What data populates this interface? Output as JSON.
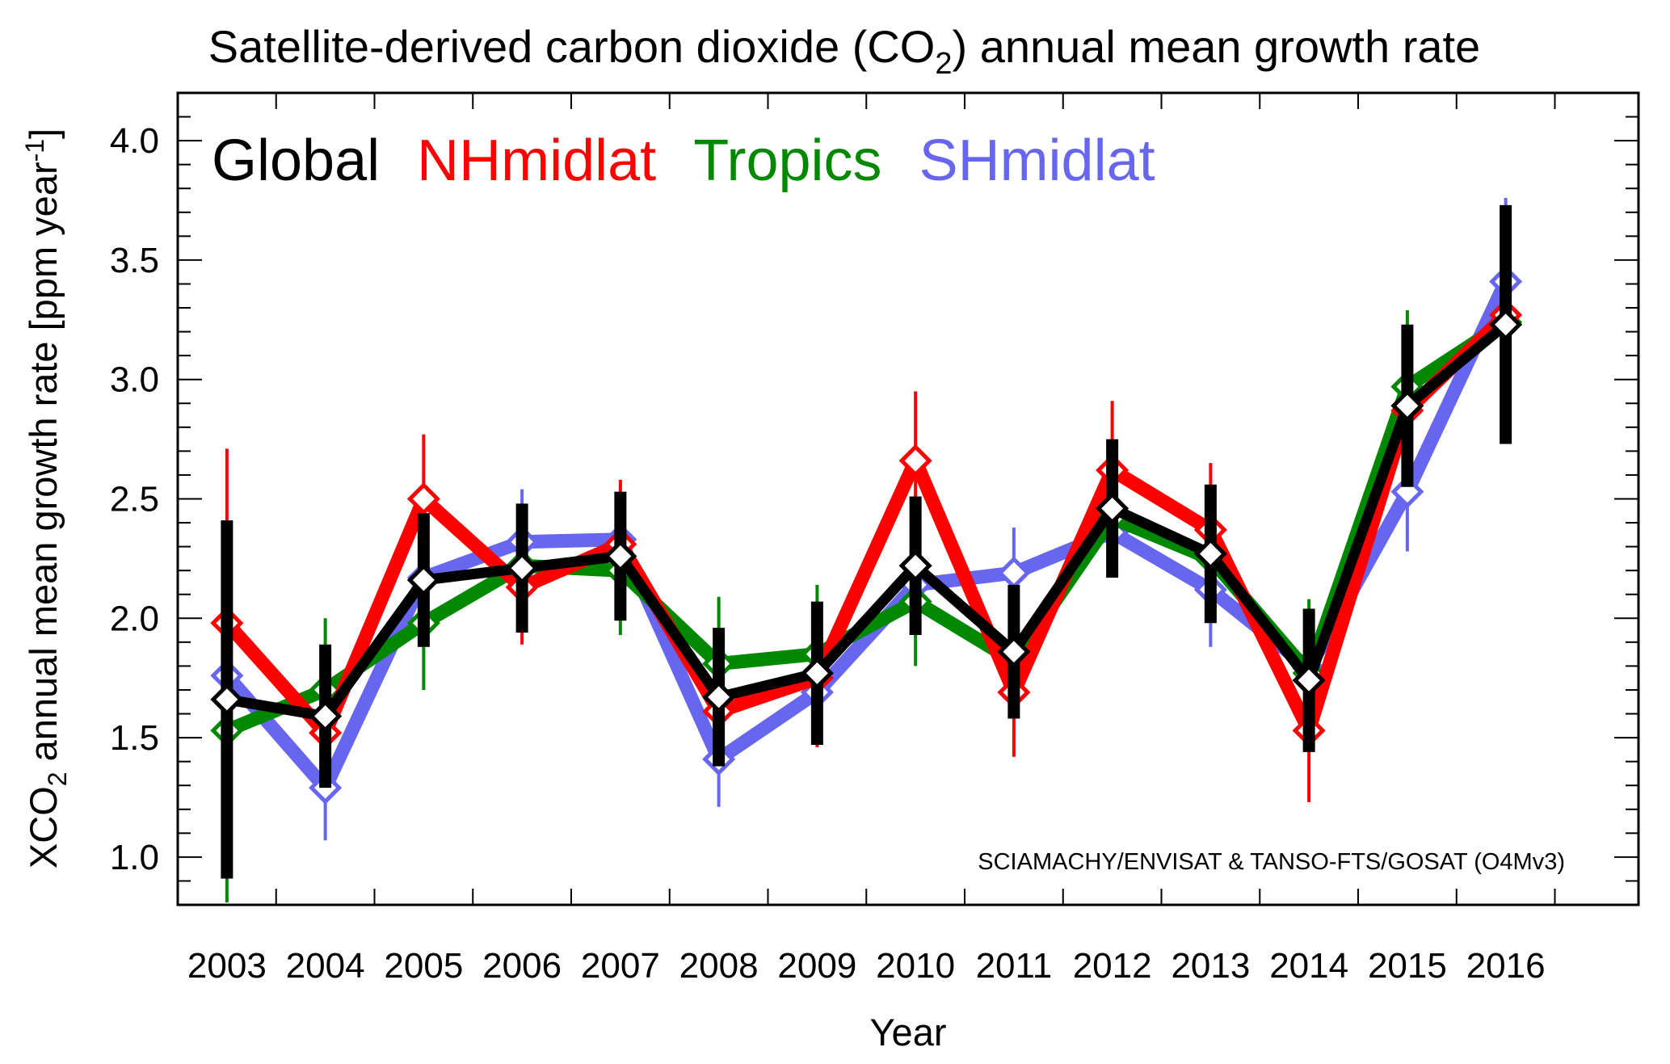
{
  "chart_data": {
    "type": "line",
    "title": {
      "prefix": "Satellite-derived carbon dioxide  (CO",
      "subscript": "2",
      "suffix": ") annual mean growth rate"
    },
    "xlabel": "Year",
    "ylabel": {
      "prefix": "XCO",
      "subscript": "2",
      "middle": " annual mean growth rate [ppm year",
      "superscript": "-1",
      "suffix": "]"
    },
    "categories": [
      "2003",
      "2004",
      "2005",
      "2006",
      "2007",
      "2008",
      "2009",
      "2010",
      "2011",
      "2012",
      "2013",
      "2014",
      "2015",
      "2016"
    ],
    "ylim": [
      0.8,
      4.2
    ],
    "yticks": [
      "1.0",
      "1.5",
      "2.0",
      "2.5",
      "3.0",
      "3.5",
      "4.0"
    ],
    "annotation": "SCIAMACHY/ENVISAT & TANSO-FTS/GOSAT (O4Mv3)",
    "legend_position": "top-left",
    "series": [
      {
        "name": "SHmidlat",
        "color": "#6666ee",
        "values": [
          1.76,
          1.29,
          2.17,
          2.32,
          2.33,
          1.41,
          1.69,
          2.14,
          2.19,
          2.36,
          2.12,
          1.79,
          2.53,
          3.41
        ],
        "error": [
          null,
          0.22,
          null,
          0.22,
          null,
          0.2,
          null,
          null,
          0.19,
          null,
          0.24,
          null,
          0.25,
          0.35
        ]
      },
      {
        "name": "Tropics",
        "color": "#008800",
        "values": [
          1.53,
          1.7,
          1.98,
          2.22,
          2.2,
          1.81,
          1.85,
          2.07,
          1.82,
          2.42,
          2.25,
          1.77,
          2.97,
          3.24
        ],
        "error": [
          0.72,
          0.3,
          0.28,
          null,
          0.27,
          0.28,
          0.29,
          0.27,
          null,
          null,
          null,
          0.31,
          0.32,
          null
        ]
      },
      {
        "name": "NHmidlat",
        "color": "#ff0000",
        "values": [
          1.98,
          1.52,
          2.5,
          2.13,
          2.31,
          1.61,
          1.75,
          2.66,
          1.69,
          2.62,
          2.37,
          1.53,
          2.87,
          3.27
        ],
        "error": [
          0.73,
          null,
          0.27,
          0.24,
          0.27,
          null,
          0.29,
          0.29,
          0.27,
          0.29,
          0.28,
          0.3,
          null,
          null
        ]
      },
      {
        "name": "Global",
        "color": "#000000",
        "values": [
          1.66,
          1.59,
          2.16,
          2.21,
          2.26,
          1.67,
          1.77,
          2.22,
          1.86,
          2.46,
          2.27,
          1.74,
          2.89,
          3.23
        ],
        "error": [
          0.75,
          0.3,
          0.28,
          0.27,
          0.27,
          0.29,
          0.3,
          0.29,
          0.28,
          0.29,
          0.29,
          0.3,
          0.34,
          0.5
        ]
      }
    ]
  }
}
